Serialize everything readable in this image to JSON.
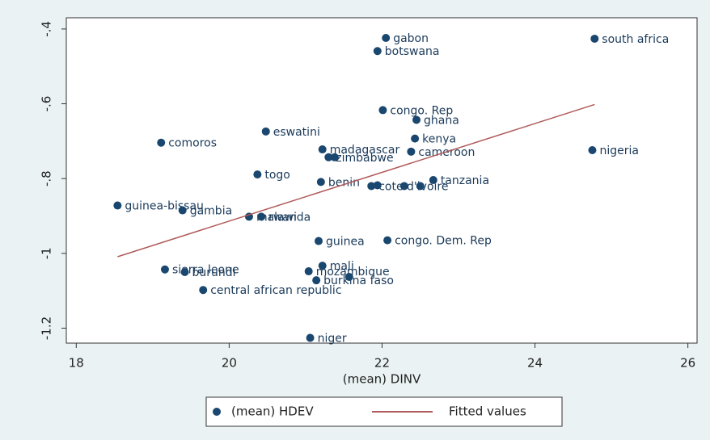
{
  "chart_data": {
    "type": "scatter",
    "x_label": "(mean) DINV",
    "xlim": [
      17.87,
      26.12
    ],
    "xticks": [
      18,
      20,
      22,
      24,
      26
    ],
    "ylim": [
      -1.24,
      -0.37
    ],
    "yticks": [
      {
        "value": -0.4,
        "label": "-.4"
      },
      {
        "value": -0.6,
        "label": "-.6"
      },
      {
        "value": -0.8,
        "label": "-.8"
      },
      -1,
      -1.2
    ],
    "legend": "bottom",
    "series": [
      {
        "name": "(mean) HDEV",
        "color": "#1a476f",
        "x": [
          22.05,
          21.94,
          24.78,
          22.01,
          22.45,
          22.43,
          20.48,
          19.11,
          21.22,
          22.38,
          24.75,
          21.3,
          21.38,
          20.37,
          21.2,
          22.67,
          21.86,
          21.94,
          22.29,
          22.5,
          18.54,
          19.39,
          20.26,
          20.42,
          21.17,
          22.07,
          21.22,
          21.04,
          19.16,
          19.42,
          21.14,
          21.57,
          19.66,
          21.06
        ],
        "values": [
          -0.424,
          -0.459,
          -0.426,
          -0.617,
          -0.643,
          -0.693,
          -0.674,
          -0.704,
          -0.722,
          -0.728,
          -0.724,
          -0.743,
          -0.743,
          -0.789,
          -0.809,
          -0.804,
          -0.82,
          -0.818,
          -0.82,
          -0.82,
          -0.872,
          -0.885,
          -0.902,
          -0.902,
          -0.967,
          -0.965,
          -1.033,
          -1.048,
          -1.043,
          -1.05,
          -1.072,
          -1.063,
          -1.098,
          -1.226
        ],
        "labels": [
          "gabon",
          "botswana",
          "south africa",
          "congo. Rep",
          "ghana",
          "kenya",
          "eswatini",
          "comoros",
          "madagascar",
          "cameroon",
          "nigeria",
          "zimbabwe",
          null,
          "togo",
          "benin",
          "tanzania",
          "cote d'ivoire",
          null,
          null,
          null,
          "guinea-bissau",
          "gambia",
          "malawi",
          "rwanda",
          "guinea",
          "congo. Dem. Rep",
          "mali",
          "mozambique",
          "sierra leone",
          "burundi",
          "burkina faso",
          null,
          "central african republic",
          "niger"
        ]
      },
      {
        "name": "Fitted values",
        "type": "line",
        "color": "#b05a5a",
        "x": [
          18.54,
          24.78
        ],
        "values": [
          -1.009,
          -0.602
        ]
      }
    ]
  }
}
